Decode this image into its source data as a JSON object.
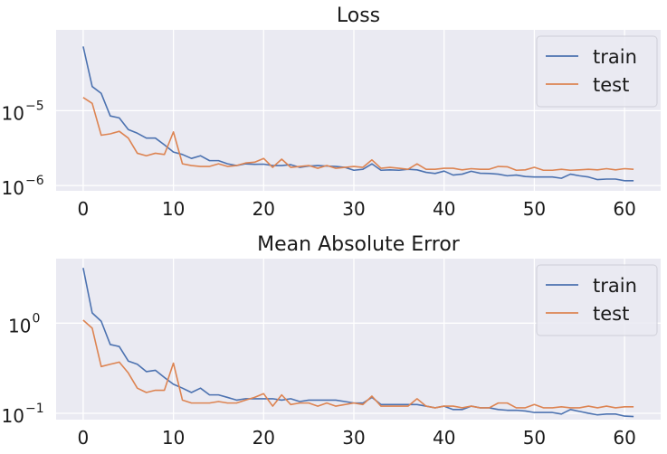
{
  "chart_data": [
    {
      "type": "line",
      "title": "Loss",
      "xlabel": "",
      "ylabel": "",
      "yscale": "log",
      "xlim": [
        -3,
        64
      ],
      "ylim": [
        8.5e-07,
        0.00012
      ],
      "xticks": [
        0,
        10,
        20,
        30,
        40,
        50,
        60
      ],
      "xtick_labels": [
        "0",
        "10",
        "20",
        "30",
        "40",
        "50",
        "60"
      ],
      "yticks": [
        1e-06,
        1e-05
      ],
      "ytick_labels": [
        {
          "base": "10",
          "exp": "−6"
        },
        {
          "base": "10",
          "exp": "−5"
        }
      ],
      "grid": true,
      "legend_position": "top-right",
      "x": [
        0,
        1,
        2,
        3,
        4,
        5,
        6,
        7,
        8,
        9,
        10,
        11,
        12,
        13,
        14,
        15,
        16,
        17,
        18,
        19,
        20,
        21,
        22,
        23,
        24,
        25,
        26,
        27,
        28,
        29,
        30,
        31,
        32,
        33,
        34,
        35,
        36,
        37,
        38,
        39,
        40,
        41,
        42,
        43,
        44,
        45,
        46,
        47,
        48,
        49,
        50,
        51,
        52,
        53,
        54,
        55,
        56,
        57,
        58,
        59,
        60,
        61
      ],
      "series": [
        {
          "name": "train",
          "color": "#4c72b0",
          "values": [
            7.2e-05,
            2.1e-05,
            1.7e-05,
            8.5e-06,
            8e-06,
            5.6e-06,
            5e-06,
            4.3e-06,
            4.3e-06,
            3.5e-06,
            2.8e-06,
            2.6e-06,
            2.3e-06,
            2.5e-06,
            2.15e-06,
            2.15e-06,
            1.95e-06,
            1.85e-06,
            1.95e-06,
            1.92e-06,
            1.93e-06,
            1.85e-06,
            1.85e-06,
            1.9e-06,
            1.75e-06,
            1.82e-06,
            1.85e-06,
            1.82e-06,
            1.8e-06,
            1.75e-06,
            1.6e-06,
            1.65e-06,
            1.95e-06,
            1.6e-06,
            1.62e-06,
            1.6e-06,
            1.65e-06,
            1.62e-06,
            1.5e-06,
            1.45e-06,
            1.56e-06,
            1.38e-06,
            1.42e-06,
            1.55e-06,
            1.46e-06,
            1.45e-06,
            1.42e-06,
            1.35e-06,
            1.38e-06,
            1.32e-06,
            1.3e-06,
            1.3e-06,
            1.3e-06,
            1.25e-06,
            1.42e-06,
            1.35e-06,
            1.3e-06,
            1.2e-06,
            1.22e-06,
            1.22e-06,
            1.16e-06,
            1.16e-06
          ]
        },
        {
          "name": "test",
          "color": "#dd8452",
          "values": [
            1.5e-05,
            1.25e-05,
            4.7e-06,
            4.9e-06,
            5.3e-06,
            4.3e-06,
            2.7e-06,
            2.5e-06,
            2.7e-06,
            2.6e-06,
            5.2e-06,
            1.95e-06,
            1.85e-06,
            1.8e-06,
            1.8e-06,
            1.95e-06,
            1.8e-06,
            1.85e-06,
            2e-06,
            2.05e-06,
            2.3e-06,
            1.75e-06,
            2.25e-06,
            1.75e-06,
            1.8e-06,
            1.85e-06,
            1.7e-06,
            1.85e-06,
            1.7e-06,
            1.75e-06,
            1.8e-06,
            1.75e-06,
            2.2e-06,
            1.7e-06,
            1.75e-06,
            1.7e-06,
            1.65e-06,
            1.95e-06,
            1.65e-06,
            1.65e-06,
            1.7e-06,
            1.7e-06,
            1.62e-06,
            1.68e-06,
            1.65e-06,
            1.65e-06,
            1.8e-06,
            1.78e-06,
            1.6e-06,
            1.62e-06,
            1.75e-06,
            1.6e-06,
            1.6e-06,
            1.65e-06,
            1.6e-06,
            1.62e-06,
            1.65e-06,
            1.62e-06,
            1.68e-06,
            1.62e-06,
            1.68e-06,
            1.65e-06
          ]
        }
      ]
    },
    {
      "type": "line",
      "title": "Mean Absolute Error",
      "xlabel": "",
      "ylabel": "",
      "yscale": "log",
      "xlim": [
        -3,
        64
      ],
      "ylim": [
        0.085,
        5.2
      ],
      "xticks": [
        0,
        10,
        20,
        30,
        40,
        50,
        60
      ],
      "xtick_labels": [
        "0",
        "10",
        "20",
        "30",
        "40",
        "50",
        "60"
      ],
      "yticks": [
        0.1,
        1
      ],
      "ytick_labels": [
        {
          "base": "10",
          "exp": "−1"
        },
        {
          "base": "10",
          "exp": "0"
        }
      ],
      "grid": true,
      "legend_position": "top-right",
      "x": [
        0,
        1,
        2,
        3,
        4,
        5,
        6,
        7,
        8,
        9,
        10,
        11,
        12,
        13,
        14,
        15,
        16,
        17,
        18,
        19,
        20,
        21,
        22,
        23,
        24,
        25,
        26,
        27,
        28,
        29,
        30,
        31,
        32,
        33,
        34,
        35,
        36,
        37,
        38,
        39,
        40,
        41,
        42,
        43,
        44,
        45,
        46,
        47,
        48,
        49,
        50,
        51,
        52,
        53,
        54,
        55,
        56,
        57,
        58,
        59,
        60,
        61
      ],
      "series": [
        {
          "name": "train",
          "color": "#4c72b0",
          "values": [
            4.1,
            1.3,
            1.05,
            0.58,
            0.55,
            0.38,
            0.35,
            0.29,
            0.3,
            0.25,
            0.21,
            0.19,
            0.17,
            0.19,
            0.16,
            0.16,
            0.15,
            0.14,
            0.145,
            0.145,
            0.145,
            0.145,
            0.14,
            0.145,
            0.135,
            0.14,
            0.14,
            0.14,
            0.14,
            0.135,
            0.13,
            0.13,
            0.15,
            0.125,
            0.125,
            0.125,
            0.125,
            0.125,
            0.12,
            0.115,
            0.12,
            0.11,
            0.11,
            0.12,
            0.115,
            0.115,
            0.11,
            0.108,
            0.108,
            0.106,
            0.102,
            0.102,
            0.102,
            0.098,
            0.11,
            0.105,
            0.1,
            0.096,
            0.098,
            0.098,
            0.093,
            0.092
          ]
        },
        {
          "name": "test",
          "color": "#dd8452",
          "values": [
            1.08,
            0.88,
            0.33,
            0.35,
            0.37,
            0.28,
            0.19,
            0.17,
            0.18,
            0.18,
            0.36,
            0.14,
            0.13,
            0.13,
            0.13,
            0.135,
            0.13,
            0.13,
            0.14,
            0.15,
            0.165,
            0.12,
            0.16,
            0.125,
            0.13,
            0.13,
            0.12,
            0.13,
            0.12,
            0.125,
            0.13,
            0.125,
            0.155,
            0.12,
            0.12,
            0.12,
            0.12,
            0.145,
            0.12,
            0.115,
            0.12,
            0.12,
            0.115,
            0.12,
            0.115,
            0.115,
            0.13,
            0.13,
            0.115,
            0.115,
            0.125,
            0.115,
            0.115,
            0.118,
            0.115,
            0.115,
            0.12,
            0.115,
            0.12,
            0.115,
            0.118,
            0.118
          ]
        }
      ]
    }
  ],
  "style": {
    "plot_background": "#eaeaf2",
    "grid_color": "#ffffff",
    "text_color": "#1a1a1a"
  }
}
